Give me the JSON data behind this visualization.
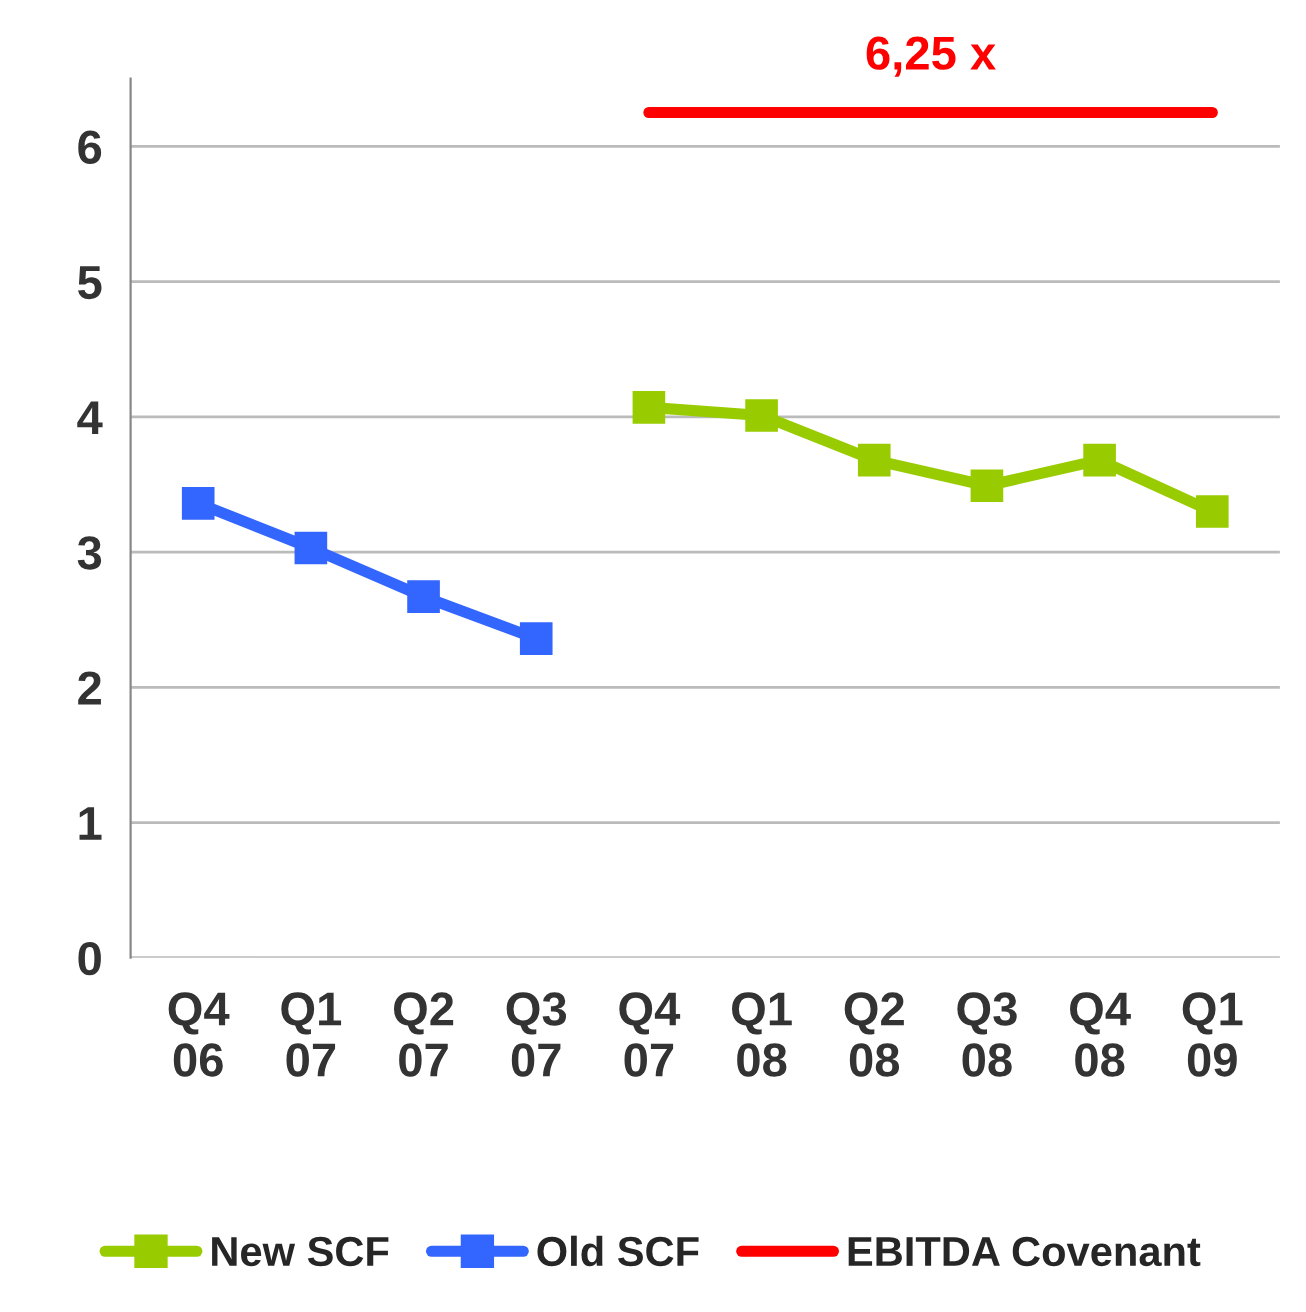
{
  "chart_data": {
    "type": "line",
    "categories": [
      "Q4\n06",
      "Q1\n07",
      "Q2\n07",
      "Q3\n07",
      "Q4\n07",
      "Q1\n08",
      "Q2\n08",
      "Q3\n08",
      "Q4\n08",
      "Q1\n09"
    ],
    "series": [
      {
        "name": "New SCF",
        "color": "#99cc00",
        "marker": "square",
        "values": [
          null,
          null,
          null,
          null,
          4.07,
          4.01,
          3.68,
          3.49,
          3.68,
          3.3
        ]
      },
      {
        "name": "Old SCF",
        "color": "#3366ff",
        "marker": "square",
        "values": [
          3.36,
          3.03,
          2.67,
          2.36,
          null,
          null,
          null,
          null,
          null,
          null
        ]
      },
      {
        "name": "EBITDA Covenant",
        "color": "#ff0000",
        "marker": "none",
        "values": [
          null,
          null,
          null,
          null,
          6.25,
          6.25,
          6.25,
          6.25,
          6.25,
          6.25
        ]
      }
    ],
    "annotations": [
      "6,25 x"
    ],
    "ylim": [
      0,
      6.5
    ],
    "yticks": [
      0,
      1,
      2,
      3,
      4,
      5,
      6
    ],
    "grid": "y",
    "legend": "bottom",
    "line_style": "solid"
  }
}
